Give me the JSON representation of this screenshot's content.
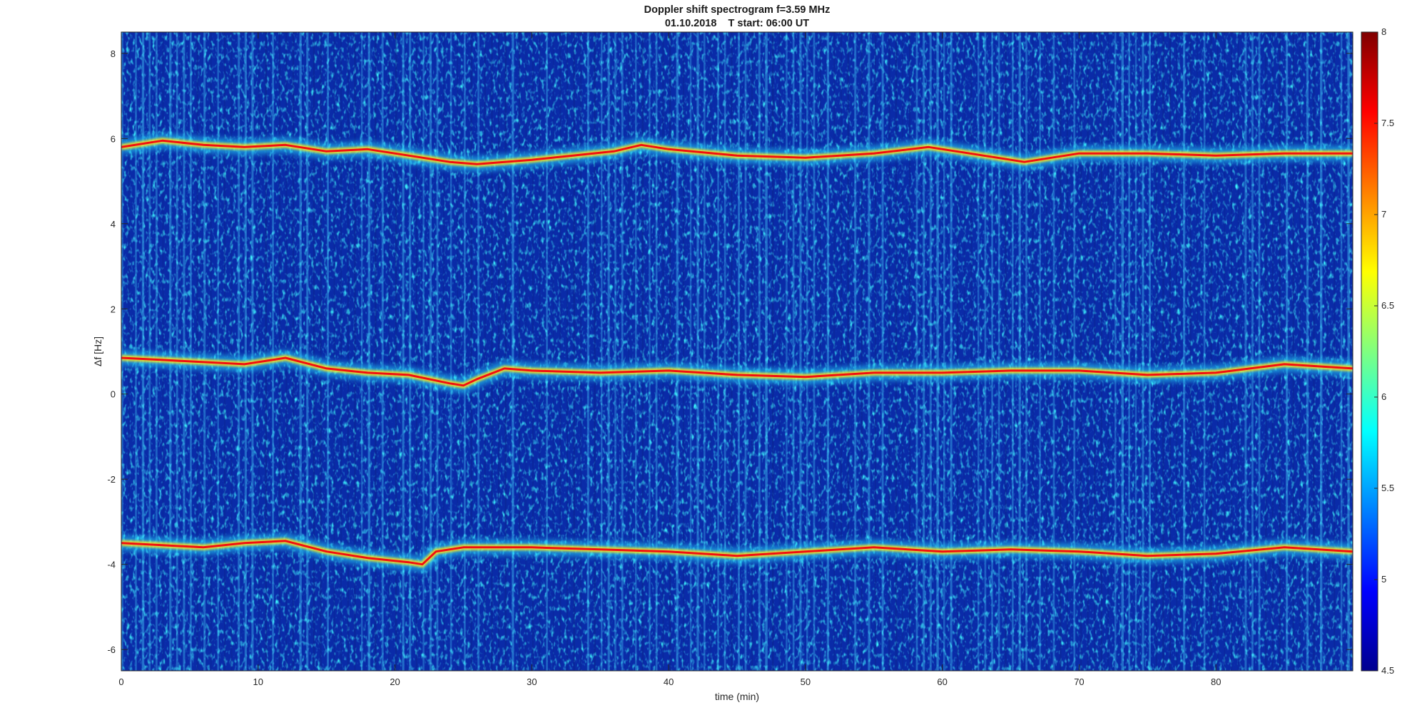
{
  "chart_data": {
    "type": "heatmap",
    "title": "Doppler shift spectrogram f=3.59 MHz",
    "subtitle": "01.10.2018    T start: 06:00 UT",
    "xlabel": "time (min)",
    "ylabel": "Δf [Hz]",
    "xlim": [
      0,
      90
    ],
    "ylim": [
      -6.5,
      8.5
    ],
    "x_ticks": [
      0,
      10,
      20,
      30,
      40,
      50,
      60,
      70,
      80
    ],
    "y_ticks": [
      -6,
      -4,
      -2,
      0,
      2,
      4,
      6,
      8
    ],
    "colorbar": {
      "colormap": "jet",
      "clim": [
        4.5,
        8
      ],
      "ticks": [
        4.5,
        5,
        5.5,
        6,
        6.5,
        7,
        7.5,
        8
      ]
    },
    "traces": [
      {
        "x": [
          0,
          3,
          6,
          9,
          12,
          15,
          18,
          21,
          24,
          26,
          28,
          30,
          33,
          36,
          38,
          40,
          45,
          50,
          55,
          59,
          62,
          64,
          66,
          68,
          70,
          75,
          80,
          85,
          90
        ],
        "y": [
          5.8,
          5.95,
          5.85,
          5.8,
          5.85,
          5.7,
          5.75,
          5.6,
          5.45,
          5.4,
          5.45,
          5.5,
          5.6,
          5.7,
          5.85,
          5.75,
          5.6,
          5.55,
          5.65,
          5.8,
          5.65,
          5.55,
          5.45,
          5.55,
          5.65,
          5.65,
          5.6,
          5.65,
          5.65
        ]
      },
      {
        "x": [
          0,
          3,
          6,
          9,
          12,
          15,
          18,
          21,
          24,
          25,
          26,
          28,
          30,
          35,
          40,
          45,
          50,
          55,
          60,
          65,
          70,
          75,
          80,
          85,
          90
        ],
        "y": [
          0.85,
          0.8,
          0.75,
          0.7,
          0.85,
          0.6,
          0.5,
          0.45,
          0.25,
          0.2,
          0.35,
          0.6,
          0.55,
          0.5,
          0.55,
          0.45,
          0.4,
          0.5,
          0.5,
          0.55,
          0.55,
          0.45,
          0.5,
          0.7,
          0.6
        ]
      },
      {
        "x": [
          0,
          3,
          6,
          9,
          12,
          15,
          18,
          21,
          22,
          23,
          25,
          30,
          35,
          40,
          45,
          50,
          55,
          60,
          65,
          70,
          75,
          80,
          85,
          90
        ],
        "y": [
          -3.5,
          -3.55,
          -3.6,
          -3.5,
          -3.45,
          -3.7,
          -3.85,
          -3.95,
          -4.0,
          -3.7,
          -3.6,
          -3.6,
          -3.65,
          -3.7,
          -3.8,
          -3.7,
          -3.6,
          -3.7,
          -3.65,
          -3.7,
          -3.8,
          -3.75,
          -3.6,
          -3.7
        ]
      }
    ]
  }
}
